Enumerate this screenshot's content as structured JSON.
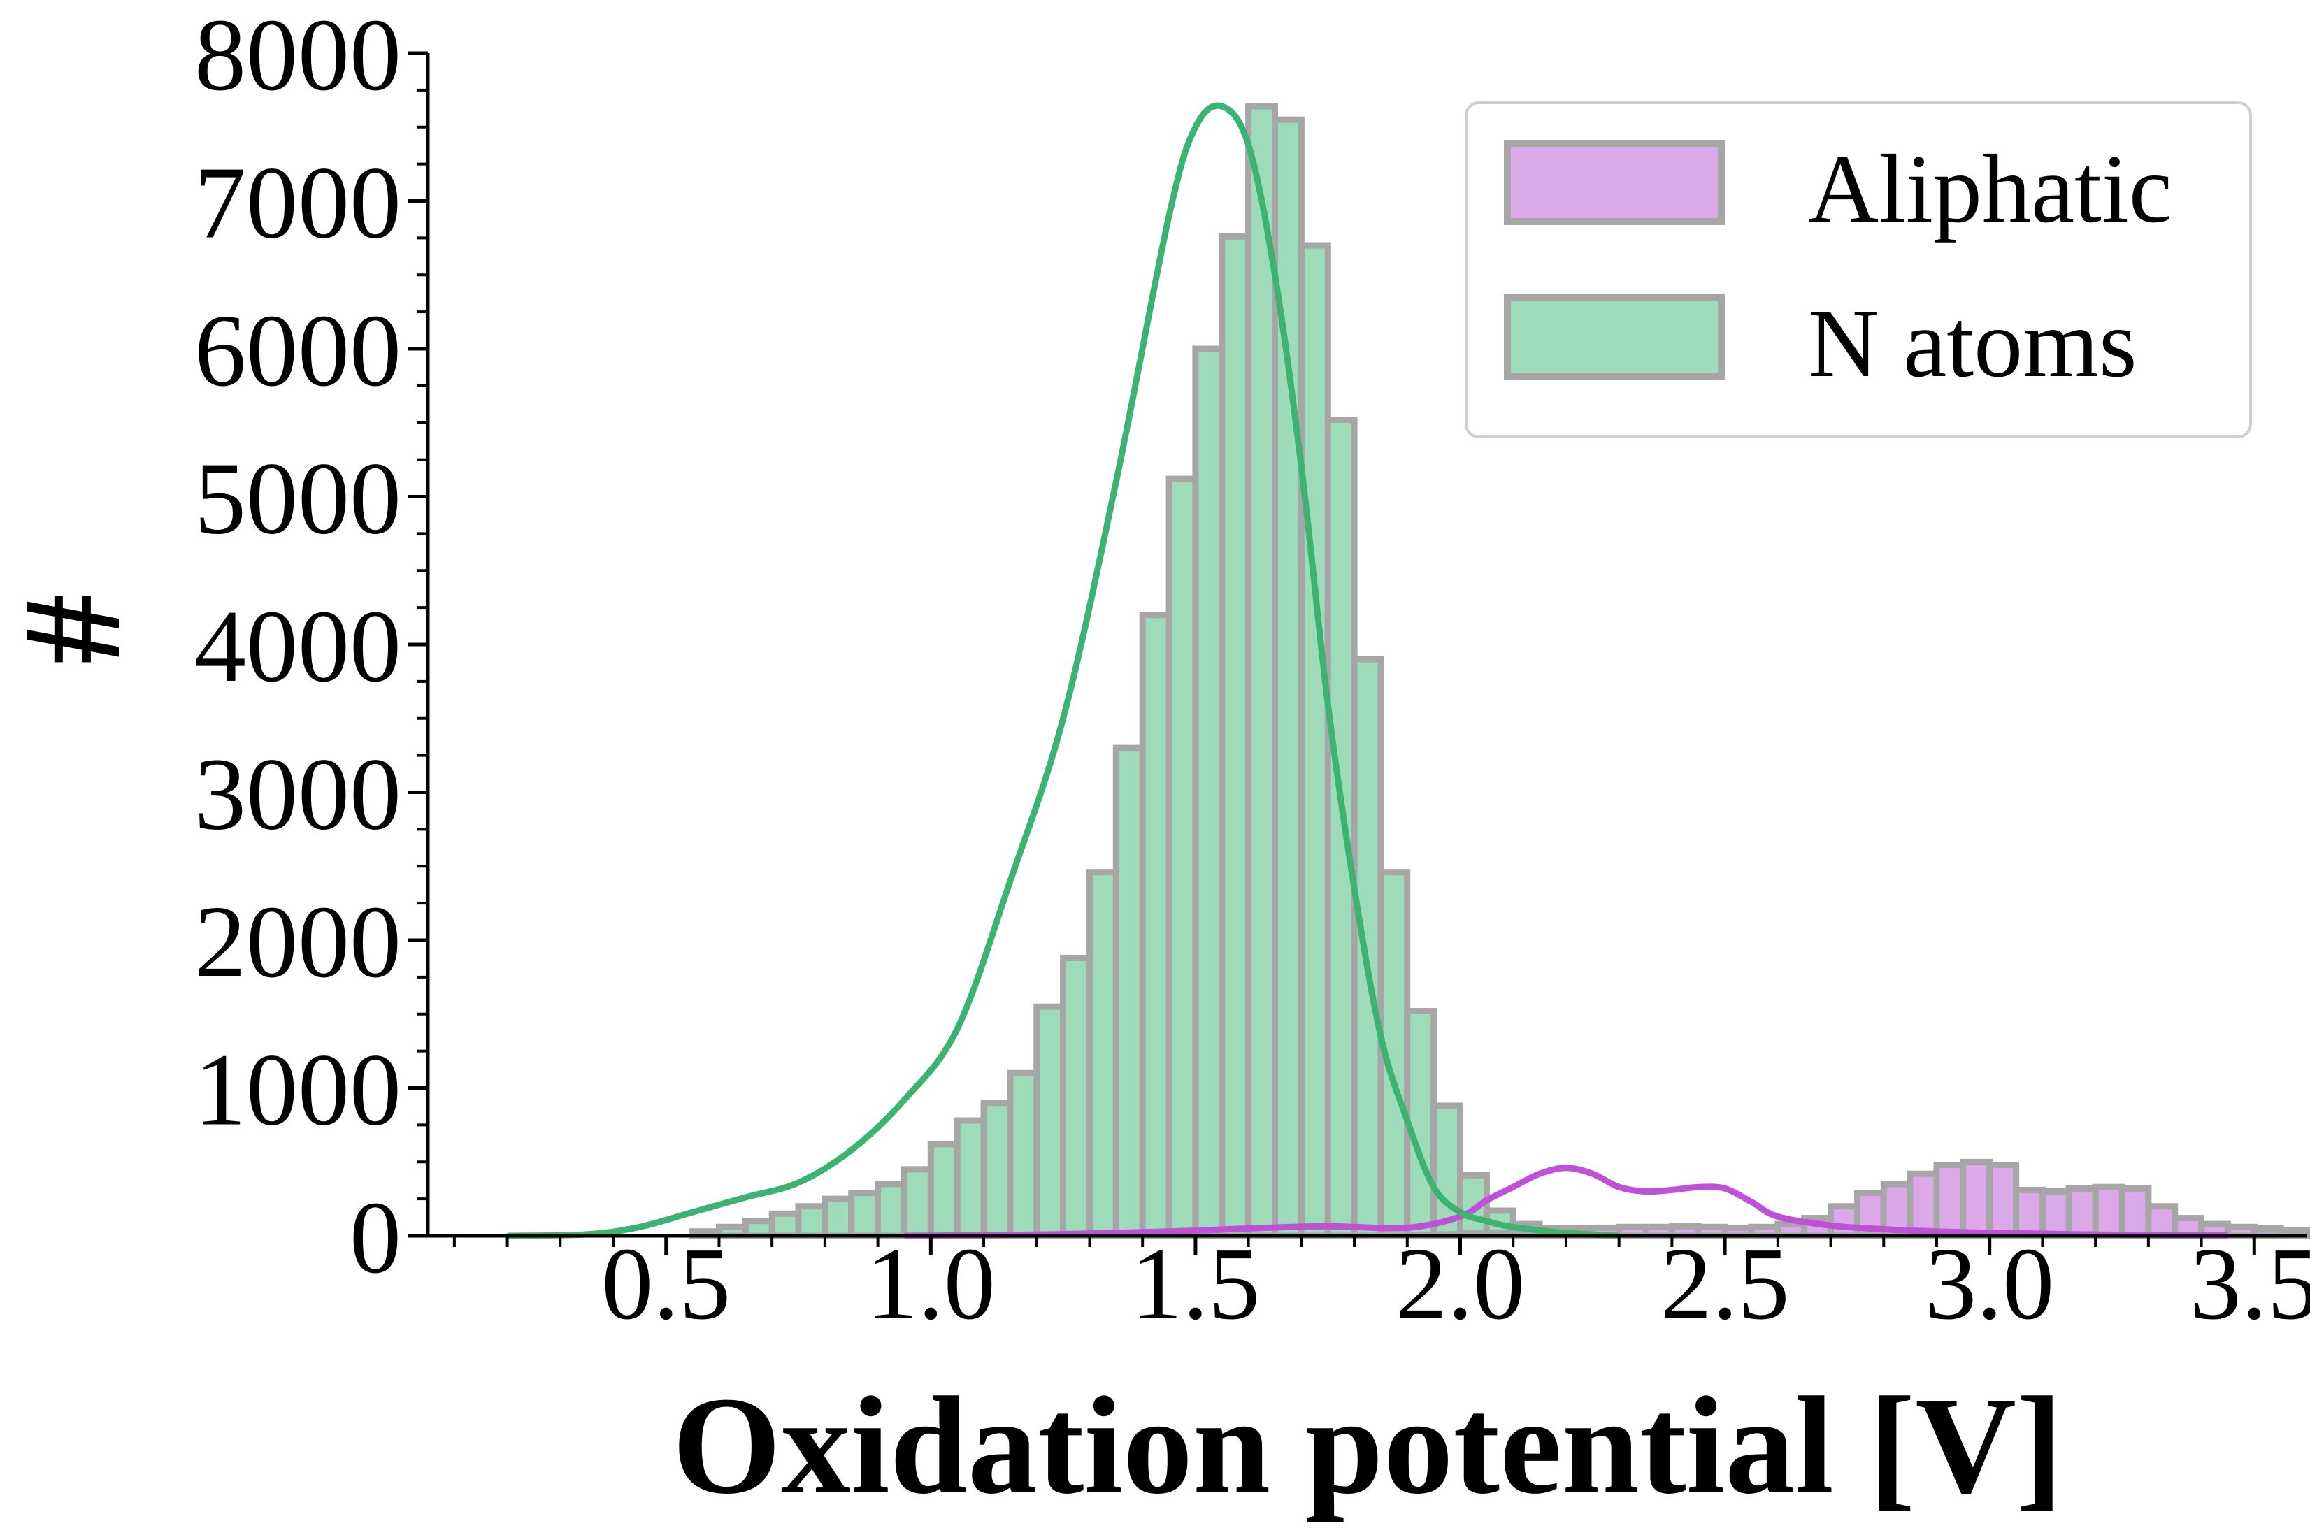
{
  "chart_data": {
    "type": "bar",
    "title": "",
    "xlabel": "Oxidation potential [V]",
    "ylabel": "#",
    "xlim": [
      0.05,
      3.6
    ],
    "ylim": [
      0,
      8000
    ],
    "x_ticks": [
      0.5,
      1.0,
      1.5,
      2.0,
      2.5,
      3.0,
      3.5
    ],
    "x_tick_labels": [
      "0.5",
      "1.0",
      "1.5",
      "2.0",
      "2.5",
      "3.0",
      "3.5"
    ],
    "y_ticks": [
      0,
      1000,
      2000,
      3000,
      4000,
      5000,
      6000,
      7000,
      8000
    ],
    "y_tick_labels": [
      "0",
      "1000",
      "2000",
      "3000",
      "4000",
      "5000",
      "6000",
      "7000",
      "8000"
    ],
    "grid": false,
    "legend_position": "top-right",
    "bin_width": 0.05,
    "bin_edges_start": 0.2,
    "series": [
      {
        "name": "Aliphatic",
        "color": "#dba8e8",
        "line_color": "#c050d8",
        "values": [
          0,
          0,
          0,
          0,
          0,
          0,
          0,
          0,
          0,
          0,
          0,
          0,
          0,
          0,
          0,
          0,
          0,
          0,
          0,
          0,
          0,
          0,
          0,
          0,
          0,
          0,
          0,
          0,
          0,
          0,
          0,
          0,
          0,
          0,
          5,
          10,
          15,
          20,
          30,
          40,
          50,
          55,
          60,
          60,
          65,
          60,
          55,
          60,
          80,
          120,
          200,
          290,
          350,
          420,
          480,
          500,
          480,
          310,
          300,
          320,
          330,
          320,
          200,
          120,
          80,
          60,
          50,
          40,
          35,
          30,
          25,
          20,
          50,
          15,
          10,
          8,
          5,
          5,
          4,
          3,
          3,
          2,
          2,
          2,
          1,
          1,
          1,
          0,
          0,
          0
        ]
      },
      {
        "name": "N atoms",
        "color": "#9edbb8",
        "line_color": "#3cb371",
        "values": [
          0,
          0,
          0,
          0,
          0,
          0,
          0,
          30,
          60,
          100,
          150,
          200,
          250,
          290,
          350,
          450,
          620,
          780,
          900,
          1100,
          1550,
          1880,
          2460,
          3300,
          4200,
          5120,
          6000,
          6760,
          7640,
          7550,
          6700,
          5520,
          3900,
          2460,
          1520,
          880,
          410,
          170,
          80,
          50,
          30,
          20,
          10,
          5,
          0,
          0,
          0,
          0,
          0,
          0,
          0,
          0,
          0,
          0,
          0,
          0,
          0,
          0,
          0,
          0,
          0,
          0,
          0,
          0,
          0,
          0,
          0,
          0,
          0,
          0,
          0,
          0,
          0,
          0,
          0,
          0,
          0,
          0,
          0,
          0,
          0,
          0,
          0,
          0,
          0,
          0,
          0,
          0,
          0,
          0
        ]
      }
    ],
    "kde": [
      {
        "name": "Aliphatic",
        "x": [
          0.95,
          1.2,
          1.45,
          1.6,
          1.75,
          1.9,
          2.0,
          2.05,
          2.1,
          2.15,
          2.2,
          2.25,
          2.3,
          2.35,
          2.4,
          2.45,
          2.5,
          2.55,
          2.6,
          2.7,
          2.8,
          2.9,
          3.0,
          3.2,
          3.45
        ],
        "y": [
          0,
          8,
          30,
          50,
          65,
          55,
          130,
          240,
          330,
          420,
          460,
          420,
          330,
          300,
          310,
          330,
          320,
          230,
          130,
          70,
          45,
          30,
          20,
          8,
          2
        ]
      },
      {
        "name": "N atoms",
        "x": [
          0.2,
          0.35,
          0.45,
          0.55,
          0.65,
          0.75,
          0.85,
          0.95,
          1.05,
          1.15,
          1.25,
          1.35,
          1.45,
          1.5,
          1.55,
          1.6,
          1.65,
          1.7,
          1.75,
          1.8,
          1.85,
          1.9,
          1.95,
          2.0,
          2.05,
          2.1,
          2.2,
          2.3
        ],
        "y": [
          0,
          10,
          60,
          160,
          260,
          360,
          580,
          920,
          1400,
          2400,
          3500,
          5100,
          6900,
          7500,
          7640,
          7380,
          6500,
          5200,
          3600,
          2350,
          1350,
          780,
          330,
          160,
          100,
          60,
          20,
          0
        ]
      }
    ]
  }
}
